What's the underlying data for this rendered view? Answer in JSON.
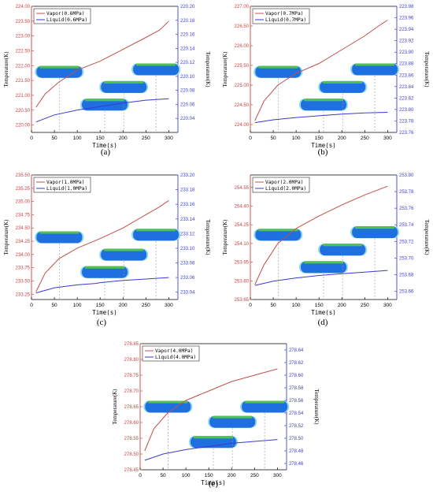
{
  "figure": {
    "colors": {
      "vapor": "#c0504d",
      "liquid": "#3a3ad0",
      "vapor_axis": "#d04040",
      "liquid_axis": "#4040d8",
      "pipe": "#1e6fe0",
      "pipe_top": "#4fc24f",
      "pipe_cap": "#8fd8e8"
    }
  },
  "chart_data": [
    {
      "type": "line",
      "panel_label": "(a)",
      "xlabel": "Time(s)",
      "ylabel": "Temperature(K)",
      "y2label": "Temperature(K)",
      "xlim": [
        0,
        320
      ],
      "xticks": [
        "0",
        "50",
        "100",
        "150",
        "200",
        "250",
        "300"
      ],
      "ylim": [
        219.75,
        224.0
      ],
      "yticks": [
        "220.00",
        "220.50",
        "221.00",
        "221.50",
        "222.00",
        "222.50",
        "223.00",
        "223.50",
        "224.00"
      ],
      "y2lim": [
        220.02,
        220.2
      ],
      "y2ticks": [
        "220.04",
        "220.06",
        "220.08",
        "220.10",
        "220.12",
        "220.14",
        "220.16",
        "220.18",
        "220.20"
      ],
      "series": [
        {
          "name": "Vapor(0.6MPa)",
          "axis": "left",
          "x": [
            10,
            30,
            60,
            100,
            150,
            200,
            250,
            280,
            300
          ],
          "y": [
            220.6,
            221.05,
            221.45,
            221.85,
            222.15,
            222.55,
            222.95,
            223.2,
            223.5
          ]
        },
        {
          "name": "Liquid(0.6MPa)",
          "axis": "right",
          "x": [
            10,
            50,
            100,
            150,
            200,
            250,
            300
          ],
          "y": [
            220.035,
            220.045,
            220.052,
            220.057,
            220.062,
            220.066,
            220.068
          ]
        }
      ],
      "legend": "top-left"
    },
    {
      "type": "line",
      "panel_label": "(b)",
      "xlabel": "Time(s)",
      "ylabel": "Temperature(K)",
      "y2label": "Temperature(K)",
      "xlim": [
        0,
        320
      ],
      "xticks": [
        "0",
        "50",
        "100",
        "150",
        "200",
        "250",
        "300"
      ],
      "ylim": [
        223.8,
        227.0
      ],
      "yticks": [
        "224.00",
        "224.50",
        "225.00",
        "225.50",
        "226.00",
        "226.50",
        "227.00"
      ],
      "y2lim": [
        223.76,
        223.98
      ],
      "y2ticks": [
        "223.76",
        "223.78",
        "223.80",
        "223.82",
        "223.84",
        "223.86",
        "223.88",
        "223.90",
        "223.92",
        "223.94",
        "223.96",
        "223.98"
      ],
      "series": [
        {
          "name": "Vapor(0.7MPa)",
          "axis": "left",
          "x": [
            10,
            30,
            60,
            100,
            150,
            200,
            250,
            280,
            300
          ],
          "y": [
            224.1,
            224.6,
            225.0,
            225.3,
            225.55,
            225.9,
            226.25,
            226.5,
            226.65
          ]
        },
        {
          "name": "Liquid(0.7MPa)",
          "axis": "right",
          "x": [
            10,
            50,
            100,
            150,
            200,
            250,
            300
          ],
          "y": [
            223.777,
            223.782,
            223.786,
            223.789,
            223.792,
            223.794,
            223.795
          ]
        }
      ],
      "legend": "top-left"
    },
    {
      "type": "line",
      "panel_label": "(c)",
      "xlabel": "Time(s)",
      "ylabel": "Temperature(K)",
      "y2label": "Temperature(K)",
      "xlim": [
        0,
        320
      ],
      "xticks": [
        "0",
        "50",
        "100",
        "150",
        "200",
        "250",
        "300"
      ],
      "ylim": [
        233.15,
        235.5
      ],
      "yticks": [
        "233.25",
        "233.50",
        "233.75",
        "234.00",
        "234.25",
        "234.50",
        "234.75",
        "235.00",
        "235.25",
        "235.50"
      ],
      "y2lim": [
        233.03,
        233.2
      ],
      "y2ticks": [
        "233.04",
        "233.06",
        "233.08",
        "233.10",
        "233.12",
        "233.14",
        "233.16",
        "233.18",
        "233.20"
      ],
      "series": [
        {
          "name": "Vapor(1.0MPa)",
          "axis": "left",
          "x": [
            10,
            30,
            60,
            100,
            150,
            200,
            250,
            280,
            300
          ],
          "y": [
            233.3,
            233.65,
            233.92,
            234.12,
            234.3,
            234.5,
            234.75,
            234.9,
            235.02
          ]
        },
        {
          "name": "Liquid(1.0MPa)",
          "axis": "right",
          "x": [
            10,
            50,
            100,
            140,
            150,
            200,
            250,
            300
          ],
          "y": [
            233.039,
            233.046,
            233.05,
            233.052,
            233.053,
            233.056,
            233.058,
            233.06
          ]
        }
      ],
      "legend": "top-left"
    },
    {
      "type": "line",
      "panel_label": "(d)",
      "xlabel": "Time(s)",
      "ylabel": "Temperature(K)",
      "y2label": "Temperature(K)",
      "xlim": [
        0,
        320
      ],
      "xticks": [
        "0",
        "50",
        "100",
        "150",
        "200",
        "250",
        "300"
      ],
      "ylim": [
        253.65,
        254.65
      ],
      "yticks": [
        "253.65",
        "253.80",
        "253.95",
        "254.10",
        "254.25",
        "254.40",
        "254.55"
      ],
      "y2lim": [
        253.65,
        253.8
      ],
      "y2ticks": [
        "253.66",
        "253.68",
        "253.70",
        "253.72",
        "253.74",
        "253.76",
        "253.78",
        "253.80"
      ],
      "series": [
        {
          "name": "Vapor(2.0MPa)",
          "axis": "left",
          "x": [
            10,
            30,
            60,
            100,
            150,
            200,
            250,
            300
          ],
          "y": [
            253.77,
            253.93,
            254.1,
            254.22,
            254.32,
            254.41,
            254.49,
            254.56
          ]
        },
        {
          "name": "Liquid(2.0MPa)",
          "axis": "right",
          "x": [
            10,
            50,
            100,
            150,
            200,
            250,
            300
          ],
          "y": [
            253.667,
            253.672,
            253.676,
            253.679,
            253.681,
            253.683,
            253.685
          ]
        }
      ],
      "legend": "top-left"
    },
    {
      "type": "line",
      "panel_label": "(e)",
      "xlabel": "Time(s)",
      "ylabel": "Temperature(K)",
      "y2label": "Temperature(K)",
      "xlim": [
        0,
        320
      ],
      "xticks": [
        "0",
        "50",
        "100",
        "150",
        "200",
        "250",
        "300"
      ],
      "ylim": [
        278.45,
        278.85
      ],
      "yticks": [
        "278.45",
        "278.50",
        "278.55",
        "278.60",
        "278.65",
        "278.70",
        "278.75",
        "278.80",
        "278.85"
      ],
      "y2lim": [
        278.45,
        278.65
      ],
      "y2ticks": [
        "278.46",
        "278.48",
        "278.50",
        "278.52",
        "278.54",
        "278.56",
        "278.58",
        "278.60",
        "278.62",
        "278.64"
      ],
      "series": [
        {
          "name": "Vapor(4.0MPa)",
          "axis": "left",
          "x": [
            10,
            30,
            60,
            100,
            150,
            200,
            250,
            300
          ],
          "y": [
            278.51,
            278.58,
            278.63,
            278.67,
            278.7,
            278.73,
            278.75,
            278.77
          ]
        },
        {
          "name": "Liquid(4.0MPa)",
          "axis": "right",
          "x": [
            10,
            50,
            100,
            150,
            200,
            250,
            300
          ],
          "y": [
            278.465,
            278.475,
            278.482,
            278.487,
            278.492,
            278.495,
            278.498
          ]
        }
      ],
      "legend": "top-left"
    }
  ]
}
